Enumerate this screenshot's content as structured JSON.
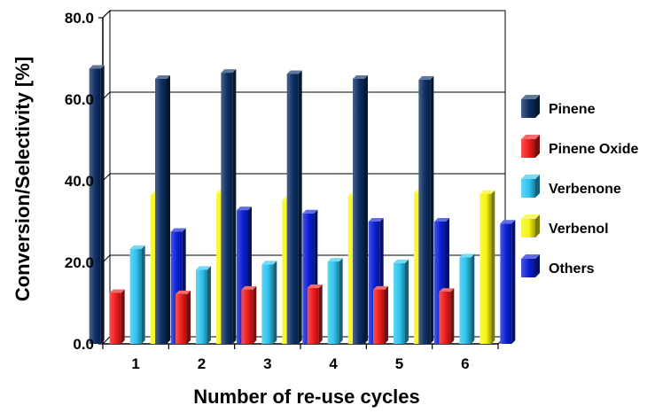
{
  "chart_data": {
    "type": "bar",
    "title": "",
    "xlabel": "Number of re-use cycles",
    "ylabel": "Conversion/Selectivity [%]",
    "ylim": [
      0,
      80
    ],
    "yticks": [
      "0.0",
      "20.0",
      "40.0",
      "60.0",
      "80.0"
    ],
    "categories": [
      "1",
      "2",
      "3",
      "4",
      "5",
      "6"
    ],
    "grid": true,
    "legend_position": "right",
    "series": [
      {
        "name": "Pinene",
        "color": "#0d2f63",
        "values": [
          67.5,
          65.0,
          66.5,
          66.2,
          65.0,
          64.8
        ]
      },
      {
        "name": "Pinene Oxide",
        "color": "#ee1c1c",
        "values": [
          12.5,
          12.2,
          13.3,
          13.7,
          13.3,
          12.8
        ]
      },
      {
        "name": "Verbenone",
        "color": "#2ec4f0",
        "values": [
          23.3,
          18.2,
          19.5,
          20.2,
          19.8,
          21.2
        ]
      },
      {
        "name": "Verbenol",
        "color": "#f6f50e",
        "values": [
          36.5,
          37.0,
          35.3,
          36.3,
          37.0,
          36.8
        ]
      },
      {
        "name": "Others",
        "color": "#0a1fd6",
        "values": [
          27.5,
          32.8,
          32.0,
          30.0,
          30.0,
          29.5
        ]
      }
    ]
  }
}
